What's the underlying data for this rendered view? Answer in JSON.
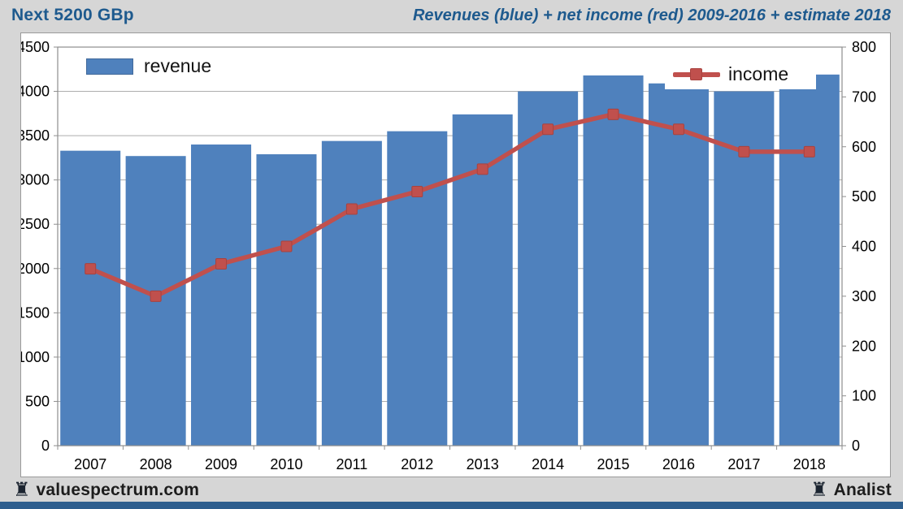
{
  "header": {
    "title_left": "Next 5200 GBp",
    "title_right": "Revenues (blue) + net income (red) 2009-2016 + estimate 2018"
  },
  "footer": {
    "left_brand": "valuespectrum.com",
    "right_brand": "Analist",
    "rook_icon": "♜"
  },
  "colors": {
    "accent_blue": "#1e5a8e",
    "bar_blue": "#4f81bd",
    "line_red": "#c0504d",
    "background_gray": "#d6d6d6",
    "bottom_bar_blue": "#2e5e8e",
    "gridline": "#adadad",
    "plot_border": "#8e8e8e"
  },
  "chart_data": {
    "type": "bar",
    "subtype": "bar+line dual axis",
    "title": "Revenues (blue) + net income (red) 2009-2016 + estimate 2018",
    "categories": [
      "2007",
      "2008",
      "2009",
      "2010",
      "2011",
      "2012",
      "2013",
      "2014",
      "2015",
      "2016",
      "2017",
      "2018"
    ],
    "series": [
      {
        "name": "revenue",
        "render": "bar",
        "axis": "left",
        "color": "#4f81bd",
        "values": [
          3330,
          3270,
          3400,
          3290,
          3440,
          3550,
          3740,
          4000,
          4180,
          4090,
          4000,
          4190
        ]
      },
      {
        "name": "income",
        "render": "line",
        "axis": "right",
        "color": "#c0504d",
        "marker": "square",
        "values": [
          355,
          300,
          365,
          400,
          475,
          510,
          555,
          635,
          665,
          635,
          590,
          590
        ]
      }
    ],
    "left_axis": {
      "min": 0,
      "max": 4500,
      "step": 500
    },
    "right_axis": {
      "min": 0,
      "max": 800,
      "step": 100
    },
    "grid": true,
    "legend_position": "revenue top-left inside plot; income top-right inside plot"
  }
}
